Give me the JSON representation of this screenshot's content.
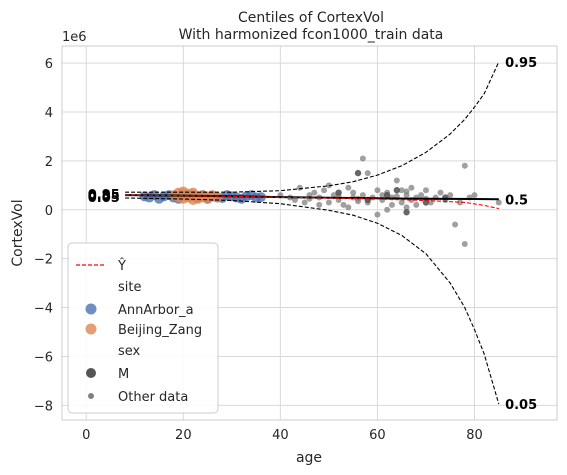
{
  "chart_data": {
    "type": "scatter",
    "title": "Centiles of CortexVol",
    "subtitle": "With harmonized fcon1000_train data",
    "xlabel": "age",
    "ylabel": "CortexVol",
    "y_offset_label": "1e6",
    "xlim": [
      -5,
      97
    ],
    "ylim": [
      -8.6,
      6.7
    ],
    "x_ticks": [
      0,
      20,
      40,
      60,
      80
    ],
    "y_ticks": [
      -8,
      -6,
      -4,
      -2,
      0,
      2,
      4,
      6
    ],
    "y_tick_labels": [
      "−8",
      "−6",
      "−4",
      "−2",
      "0",
      "2",
      "4",
      "6"
    ],
    "grid": true,
    "legend_position": "lower-left",
    "legend": {
      "yhat_label": "Ŷ",
      "site_header": "site",
      "sites": [
        {
          "name": "AnnArbor_a",
          "color": "#4c72b0"
        },
        {
          "name": "Beijing_Zang",
          "color": "#dd8452"
        }
      ],
      "sex_header": "sex",
      "sex_entries": [
        {
          "name": "M",
          "color": "#555555"
        }
      ],
      "other_label": "Other data"
    },
    "centile_labels_right": [
      {
        "text": "0.95",
        "y": 6.05
      },
      {
        "text": "0.5",
        "y": 0.43
      },
      {
        "text": "0.05",
        "y": -7.95
      }
    ],
    "centile_labels_left": [
      {
        "text": "0.05",
        "y": 0.52
      },
      {
        "text": "0.5",
        "y": 0.58
      },
      {
        "text": "0.95",
        "y": 0.64
      }
    ],
    "colors": {
      "centile_line": "#000000",
      "yhat_line": "#ff0000",
      "annarbor": "#4c72b0",
      "beijing": "#dd8452",
      "other": "#808080",
      "grid": "#d9d9d9"
    },
    "series": [
      {
        "name": "0.95",
        "style": "dashed",
        "x": [
          8,
          20,
          30,
          40,
          50,
          55,
          60,
          65,
          70,
          75,
          78,
          80,
          82,
          85
        ],
        "y": [
          0.72,
          0.72,
          0.72,
          0.78,
          0.98,
          1.15,
          1.42,
          1.8,
          2.35,
          3.1,
          3.7,
          4.2,
          4.75,
          6.05
        ]
      },
      {
        "name": "0.5",
        "style": "solid",
        "x": [
          8,
          20,
          30,
          40,
          50,
          60,
          70,
          80,
          85
        ],
        "y": [
          0.6,
          0.58,
          0.55,
          0.52,
          0.49,
          0.47,
          0.45,
          0.44,
          0.43
        ]
      },
      {
        "name": "0.05",
        "style": "dashed",
        "x": [
          8,
          20,
          30,
          40,
          50,
          55,
          60,
          65,
          70,
          75,
          78,
          80,
          82,
          85
        ],
        "y": [
          0.48,
          0.44,
          0.38,
          0.25,
          -0.02,
          -0.22,
          -0.55,
          -1.05,
          -1.8,
          -3.0,
          -4.0,
          -4.9,
          -5.9,
          -7.95
        ]
      },
      {
        "name": "Ŷ",
        "style": "dashed-red",
        "x": [
          8,
          20,
          30,
          40,
          50,
          60,
          70,
          78,
          82,
          85
        ],
        "y": [
          0.6,
          0.58,
          0.55,
          0.51,
          0.48,
          0.44,
          0.38,
          0.3,
          0.18,
          0.05
        ]
      }
    ],
    "points_other": {
      "x": [
        40,
        42,
        43,
        44,
        45,
        46,
        46,
        47,
        48,
        48,
        49,
        50,
        50,
        51,
        52,
        52,
        53,
        54,
        54,
        55,
        55,
        56,
        56,
        57,
        57,
        58,
        58,
        59,
        60,
        60,
        61,
        61,
        62,
        62,
        63,
        63,
        64,
        64,
        65,
        65,
        66,
        66,
        66,
        67,
        67,
        68,
        68,
        69,
        70,
        70,
        71,
        72,
        73,
        74,
        75,
        76,
        77,
        78,
        78,
        79,
        80,
        85
      ],
      "y": [
        0.6,
        0.5,
        0.4,
        0.9,
        0.3,
        0.6,
        0.45,
        0.7,
        0.5,
        0.2,
        0.8,
        1.0,
        0.3,
        0.6,
        0.4,
        0.55,
        0.2,
        0.9,
        0.1,
        0.7,
        0.5,
        0.45,
        0.35,
        2.1,
        0.6,
        0.3,
        1.5,
        0.5,
        0.8,
        -0.2,
        0.4,
        0.6,
        0.0,
        0.7,
        0.5,
        0.2,
        1.2,
        0.55,
        0.8,
        0.3,
        0.6,
        0.1,
        0.75,
        0.4,
        0.9,
        0.5,
        0.2,
        0.6,
        0.45,
        0.8,
        0.3,
        0.5,
        0.7,
        0.4,
        0.6,
        -0.6,
        0.3,
        1.8,
        -1.4,
        0.5,
        0.6,
        0.3
      ]
    },
    "points_m": {
      "x": [
        56,
        64,
        66,
        58,
        62,
        70,
        74,
        52
      ],
      "y": [
        1.5,
        0.8,
        -0.1,
        0.4,
        0.6,
        0.3,
        0.5,
        0.7
      ]
    },
    "points_annarbor": {
      "x": [
        12,
        13,
        14,
        15,
        16,
        17,
        18,
        19,
        22,
        23,
        24,
        25,
        26,
        27,
        28,
        29,
        30,
        31,
        32,
        33,
        34,
        35,
        36
      ],
      "y": [
        0.55,
        0.5,
        0.6,
        0.45,
        0.55,
        0.6,
        0.5,
        0.45,
        0.55,
        0.5,
        0.6,
        0.45,
        0.55,
        0.5,
        0.48,
        0.6,
        0.55,
        0.5,
        0.45,
        0.55,
        0.6,
        0.5,
        0.52
      ]
    },
    "points_beijing": {
      "x": [
        18,
        19,
        19,
        20,
        20,
        20,
        21,
        21,
        21,
        22,
        22,
        22,
        23,
        23,
        24,
        24,
        25,
        25,
        26,
        27
      ],
      "y": [
        0.6,
        0.5,
        0.7,
        0.45,
        0.6,
        0.75,
        0.5,
        0.65,
        0.55,
        0.4,
        0.6,
        0.7,
        0.55,
        0.45,
        0.6,
        0.5,
        0.55,
        0.45,
        0.6,
        0.5
      ]
    }
  }
}
